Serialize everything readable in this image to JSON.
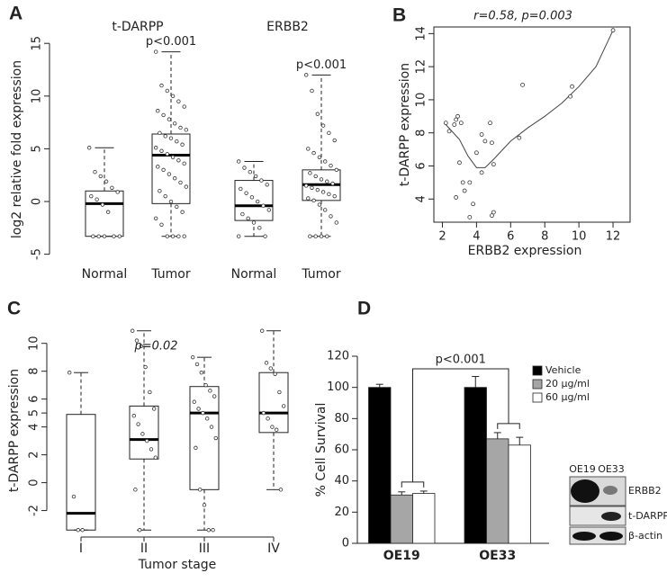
{
  "chart_data": [
    {
      "type": "box",
      "panel": "A",
      "groups": [
        "t-DARPP",
        "ERBB2"
      ],
      "categories": [
        "Normal",
        "Tumor",
        "Normal",
        "Tumor"
      ],
      "ylabel": "log2 relative fold expression",
      "ylim": [
        -5.8,
        15.7
      ],
      "yticks": [
        -5,
        0,
        5,
        10,
        15
      ],
      "annotations": [
        "p<0.001",
        "p<0.001"
      ],
      "boxes": [
        {
          "whisker_low": -3.3,
          "q1": -3.3,
          "median": -0.2,
          "q3": 1.0,
          "whisker_high": 5.1,
          "points": [
            5.1,
            2.8,
            2.4,
            1.9,
            1.3,
            0.9,
            0.5,
            0.2,
            -0.3,
            -1.0,
            -3.3,
            -3.3,
            -3.3,
            -3.3,
            -3.3
          ]
        },
        {
          "whisker_low": -3.3,
          "q1": -0.2,
          "median": 4.4,
          "q3": 6.4,
          "whisker_high": 14.2,
          "points": [
            14.2,
            11,
            10.5,
            10,
            9.5,
            9,
            8.6,
            8.2,
            7.8,
            7.4,
            7,
            6.8,
            6.5,
            6.2,
            6,
            5.7,
            5.4,
            5.1,
            4.8,
            4.5,
            4.2,
            3.9,
            3.6,
            3.3,
            3,
            2.6,
            2.2,
            1.8,
            1.4,
            1,
            0.5,
            0,
            -0.5,
            -1,
            -1.6,
            -2.2,
            -3.3,
            -3.3,
            -3.3,
            -3.3
          ]
        },
        {
          "whisker_low": -3.3,
          "q1": -1.8,
          "median": -0.4,
          "q3": 2.0,
          "whisker_high": 3.8,
          "points": [
            3.8,
            3.2,
            2.8,
            2.4,
            2,
            1.6,
            1.2,
            0.8,
            0.4,
            0,
            -0.4,
            -0.8,
            -1.2,
            -1.6,
            -2,
            -2.5,
            -3.3,
            -3.3
          ]
        },
        {
          "whisker_low": -3.3,
          "q1": 0.1,
          "median": 1.6,
          "q3": 3.0,
          "whisker_high": 12.0,
          "points": [
            12,
            10.5,
            8.3,
            7.2,
            6.5,
            5.8,
            5,
            4.6,
            4.2,
            3.8,
            3.4,
            3,
            2.7,
            2.4,
            2.1,
            1.9,
            1.7,
            1.5,
            1.3,
            1.1,
            0.9,
            0.7,
            0.5,
            0.3,
            0.1,
            -0.3,
            -0.8,
            -1.4,
            -2,
            -3.3,
            -3.3,
            -3.3,
            -3.3
          ]
        }
      ]
    },
    {
      "type": "scatter",
      "panel": "B",
      "title": "r=0.58, p=0.003",
      "xlabel": "ERBB2 expression",
      "ylabel": "t-DARPP expression",
      "xlim": [
        1.5,
        13
      ],
      "ylim": [
        2.6,
        14.4
      ],
      "xticks": [
        2,
        4,
        6,
        8,
        10,
        12
      ],
      "yticks": [
        4,
        6,
        8,
        10,
        12,
        14
      ],
      "x": [
        2.2,
        2.4,
        2.7,
        2.8,
        2.9,
        3.1,
        2.8,
        3.0,
        3.2,
        3.3,
        3.6,
        3.6,
        3.8,
        4.0,
        4.3,
        4.3,
        4.5,
        4.8,
        4.9,
        4.9,
        5.0,
        5.0,
        6.5,
        6.7,
        9.5,
        9.6,
        12.0
      ],
      "values": [
        8.6,
        8.1,
        8.5,
        8.8,
        9.0,
        8.6,
        4.1,
        6.2,
        5.0,
        4.5,
        2.9,
        5.0,
        3.7,
        6.8,
        5.6,
        7.9,
        7.5,
        8.6,
        7.4,
        3.0,
        3.2,
        6.1,
        7.7,
        10.9,
        10.2,
        10.8,
        14.2
      ],
      "fit_x": [
        2.2,
        3,
        3.5,
        4,
        4.5,
        5,
        6,
        7,
        8,
        9,
        10,
        11,
        12
      ],
      "fit_values": [
        8.5,
        7.6,
        6.6,
        5.9,
        5.9,
        6.4,
        7.5,
        8.3,
        9.0,
        9.8,
        10.8,
        12.0,
        14.2
      ]
    },
    {
      "type": "box",
      "panel": "C",
      "title": "p=0.02",
      "categories": [
        "I",
        "II",
        "III",
        "IV"
      ],
      "xlabel": "Tumor stage",
      "ylabel": "t-DARPP expression",
      "ylim": [
        -3.9,
        11.4
      ],
      "yticks": [
        -2,
        0,
        2,
        4,
        5,
        6,
        8,
        10
      ],
      "boxes": [
        {
          "whisker_low": -3.4,
          "q1": -3.4,
          "median": -2.2,
          "q3": 4.9,
          "whisker_high": 7.9,
          "points": [
            7.9,
            -1.0,
            -3.4,
            -3.4
          ]
        },
        {
          "whisker_low": -3.4,
          "q1": 1.7,
          "median": 3.1,
          "q3": 5.5,
          "whisker_high": 10.9,
          "points": [
            10.9,
            10.2,
            9.8,
            8.3,
            6.5,
            5.3,
            4.8,
            4.2,
            3.5,
            3.0,
            2.4,
            1.8,
            -0.5,
            -3.4
          ]
        },
        {
          "whisker_low": -3.4,
          "q1": -0.5,
          "median": 5.0,
          "q3": 6.9,
          "whisker_high": 9.0,
          "points": [
            9.0,
            8.5,
            7.9,
            7.0,
            6.6,
            6.2,
            5.8,
            5.3,
            5.0,
            4.6,
            4.0,
            3.2,
            2.5,
            -0.5,
            -1.6,
            -3.4,
            -3.4
          ]
        },
        {
          "whisker_low": -0.5,
          "q1": 3.6,
          "median": 5.0,
          "q3": 7.9,
          "whisker_high": 10.9,
          "points": [
            10.9,
            8.6,
            8.2,
            7.8,
            6.5,
            5.5,
            5.0,
            4.6,
            4.0,
            3.8,
            -0.5
          ]
        }
      ]
    },
    {
      "type": "bar",
      "panel": "D",
      "ylabel": "% Cell Survival",
      "categories": [
        "OE19",
        "OE33"
      ],
      "ylim": [
        0,
        120
      ],
      "yticks": [
        0,
        20,
        40,
        60,
        80,
        100,
        120
      ],
      "annotation": "p<0.001",
      "series": [
        {
          "name": "Vehicle",
          "color": "#000000",
          "values": [
            100,
            100
          ],
          "errors": [
            2,
            7
          ]
        },
        {
          "name": "20 µg/ml",
          "color": "#a6a6a6",
          "values": [
            31,
            67
          ],
          "errors": [
            2,
            4
          ]
        },
        {
          "name": "60 µg/ml",
          "color": "#ffffff",
          "values": [
            32,
            63
          ],
          "errors": [
            1.5,
            5
          ]
        }
      ],
      "inset_lanes": [
        "OE19",
        "OE33"
      ],
      "inset_bands": [
        "ERBB2",
        "t-DARPP",
        "β-actin"
      ]
    }
  ]
}
